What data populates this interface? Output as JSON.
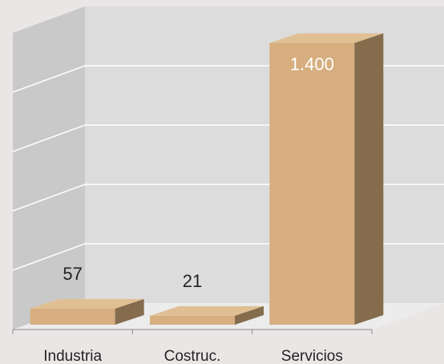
{
  "chart_data": {
    "type": "bar",
    "title": "",
    "xlabel": "",
    "ylabel": "",
    "categories": [
      "Industria",
      "Costruc.",
      "Servicios"
    ],
    "values": [
      57,
      21,
      1400
    ],
    "value_labels": [
      "57",
      "21",
      "1.400"
    ],
    "ylim": [
      0,
      1500
    ],
    "grid": true,
    "legend": "none",
    "three_d": true
  },
  "colors": {
    "background": "#ebe6e6",
    "floor": "#ececec",
    "back_wall": "#dcdcdc",
    "side_wall": "#c9c9c9",
    "gridline": "#ffffff",
    "bar_front": "#d6ae7f",
    "bar_top": "#e0bf93",
    "bar_side": "#846c4d",
    "axis_tick": "#8a8a8a",
    "text": "#222222",
    "inside_label": "#ffffff"
  }
}
